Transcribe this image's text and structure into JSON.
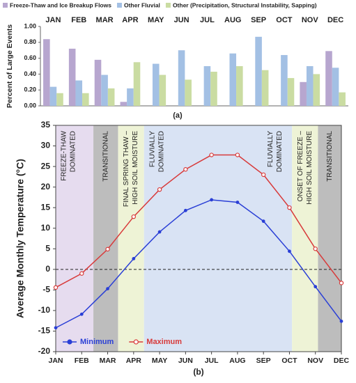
{
  "chart_data": [
    {
      "type": "bar",
      "caption": "(a)",
      "y_label": "Percent of Large Events",
      "categories": [
        "JAN",
        "FEB",
        "MAR",
        "APR",
        "MAY",
        "JUN",
        "JUL",
        "AUG",
        "SEP",
        "OCT",
        "NOV",
        "DEC"
      ],
      "series": [
        {
          "name": "Freeze-Thaw and Ice Breakup Flows",
          "color": "#b7a6cf",
          "values": [
            0.84,
            0.72,
            0.58,
            0.05,
            0,
            0,
            0,
            0,
            0,
            0,
            0.3,
            0.69
          ]
        },
        {
          "name": "Other Fluvial",
          "color": "#a3c0e4",
          "values": [
            0.24,
            0.32,
            0.39,
            0.22,
            0.53,
            0.7,
            0.5,
            0.66,
            0.87,
            0.64,
            0.5,
            0.48
          ]
        },
        {
          "name": "Other (Precipitation, Structural Instability, Sapping)",
          "color": "#cadca2",
          "values": [
            0.16,
            0.16,
            0.22,
            0.55,
            0.39,
            0.33,
            0.43,
            0.5,
            0.45,
            0.35,
            0.4,
            0.17
          ]
        }
      ],
      "ylim": [
        0,
        1
      ],
      "yticks": [
        {
          "value": 0,
          "label": "0.00"
        },
        {
          "value": 0.2,
          "label": "0.20"
        },
        {
          "value": 0.4,
          "label": "0.40"
        },
        {
          "value": 0.6,
          "label": "0.60"
        },
        {
          "value": 0.8,
          "label": "0.80"
        },
        {
          "value": 1,
          "label": "1.00"
        }
      ],
      "legend": "top"
    },
    {
      "type": "line",
      "caption": "(b)",
      "y_label": "Average Monthly Temperature (°C)",
      "categories": [
        "JAN",
        "FEB",
        "MAR",
        "APR",
        "MAY",
        "JUN",
        "JUL",
        "AUG",
        "SEP",
        "OCT",
        "NOV",
        "DEC"
      ],
      "series": [
        {
          "name": "Minimum",
          "color": "#2a3fd6",
          "marker": "filled",
          "values": [
            -14.2,
            -10.9,
            -4.7,
            2.6,
            9.1,
            14.3,
            16.9,
            16.3,
            11.7,
            4.4,
            -4.2,
            -12.6
          ]
        },
        {
          "name": "Maximum",
          "color": "#d83a3a",
          "marker": "open",
          "values": [
            -4.4,
            -1.0,
            4.9,
            12.8,
            19.4,
            24.3,
            27.8,
            27.8,
            23.0,
            15.0,
            5.0,
            -3.3
          ]
        }
      ],
      "ylim": [
        -20,
        35
      ],
      "yticks": [
        -20,
        -15,
        -10,
        -5,
        0,
        5,
        10,
        15,
        20,
        25,
        30,
        35
      ],
      "bands": [
        {
          "span": [
            0,
            1.45
          ],
          "color": "#e6dcef",
          "labels": [
            [
              "FREEZE-THAW",
              "DOMINATED"
            ]
          ]
        },
        {
          "span": [
            1.45,
            2.4
          ],
          "color": "#bdbdbd",
          "labels": [
            [
              "TRANSITIONAL"
            ]
          ]
        },
        {
          "span": [
            2.4,
            3.4
          ],
          "color": "#eef3d6",
          "labels": [
            [
              "FINAL SPRING THAW –",
              "HIGH SOIL MOISTURE"
            ]
          ]
        },
        {
          "span": [
            3.4,
            9.1
          ],
          "color": "#d9e3f4",
          "labels": [
            [
              "FLUVIALLY",
              "DOMINATED"
            ],
            [
              "FLUVIALLY",
              "DOMINATED"
            ]
          ]
        },
        {
          "span": [
            9.1,
            10.1
          ],
          "color": "#eef3d6",
          "labels": [
            [
              "ONSET OF FREEZE –",
              "HIGH SOIL MOISTURE"
            ]
          ]
        },
        {
          "span": [
            10.1,
            11
          ],
          "color": "#bdbdbd",
          "labels": [
            [
              "TRANSITIONAL"
            ]
          ]
        }
      ],
      "legend": "lower left"
    }
  ]
}
